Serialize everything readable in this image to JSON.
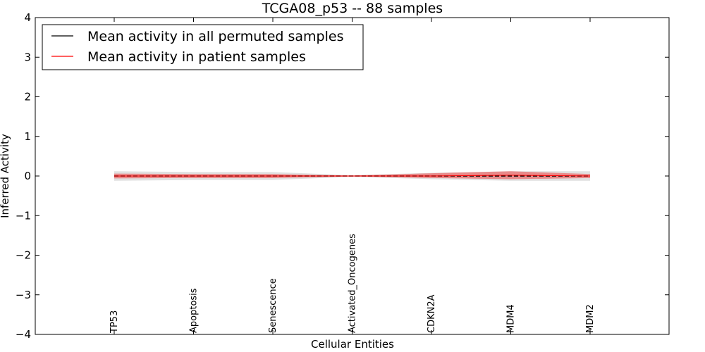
{
  "chart_data": {
    "type": "line",
    "title": "TCGA08_p53 -- 88 samples",
    "xlabel": "Cellular Entities",
    "ylabel": "Inferred Activity",
    "ylim": [
      -4,
      4
    ],
    "yticks": [
      4,
      3,
      2,
      1,
      0,
      -1,
      -2,
      -3,
      -4
    ],
    "ytick_labels": [
      "4",
      "3",
      "2",
      "1",
      "0",
      "−1",
      "−2",
      "−3",
      "−4"
    ],
    "categories": [
      "TP53",
      "Apoptosis",
      "Senescence",
      "Activated_Oncogenes",
      "CDKN2A",
      "MDM4",
      "MDM2"
    ],
    "grid": false,
    "legend_position": "top-left",
    "series": [
      {
        "name": "Mean activity in all permuted samples",
        "color": "#000000",
        "band_color": "#bbbbbb",
        "values": [
          0.0,
          0.0,
          0.0,
          0.0,
          0.0,
          0.0,
          0.0
        ],
        "band_lower": [
          -0.12,
          -0.1,
          -0.1,
          -0.02,
          -0.08,
          -0.12,
          -0.12
        ],
        "band_upper": [
          0.12,
          0.1,
          0.1,
          0.02,
          0.08,
          0.12,
          0.12
        ]
      },
      {
        "name": "Mean activity in patient samples",
        "color": "#ff0000",
        "band_color": "#ee4444",
        "values": [
          0.0,
          0.0,
          0.0,
          0.0,
          0.0,
          0.02,
          0.0
        ],
        "band_lower": [
          -0.06,
          -0.05,
          -0.05,
          -0.01,
          -0.05,
          -0.08,
          -0.05
        ],
        "band_upper": [
          0.06,
          0.05,
          0.05,
          0.01,
          0.07,
          0.12,
          0.05
        ]
      }
    ]
  }
}
